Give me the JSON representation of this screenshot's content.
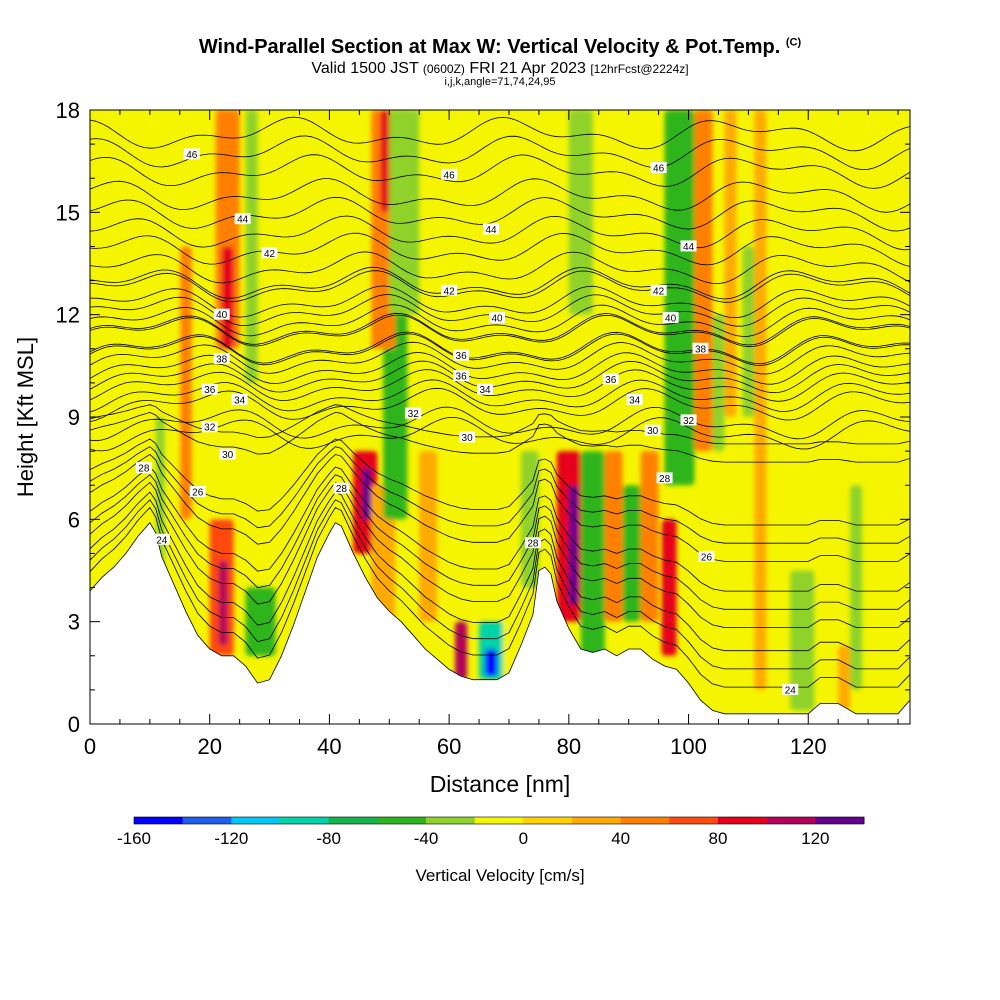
{
  "header": {
    "title": "Wind-Parallel Section at Max W: Vertical Velocity & Pot.Temp.",
    "copyright": "(C)",
    "valid_a": "Valid 1500 JST",
    "valid_utc": "(0600Z)",
    "valid_b": "FRI 21 Apr 2023",
    "fcst": "[12hrFcst@2224z]",
    "indices": "i,j,k,angle=71,74,24,95"
  },
  "chart_data": {
    "type": "heatmap",
    "xlabel": "Distance [nm]",
    "ylabel": "Height [Kft MSL]",
    "xlim": [
      0,
      137
    ],
    "ylim": [
      0,
      18
    ],
    "x_ticks": [
      "0",
      "20",
      "40",
      "60",
      "80",
      "100",
      "120"
    ],
    "y_ticks": [
      "0",
      "3",
      "6",
      "9",
      "12",
      "15",
      "18"
    ],
    "colorbar": {
      "label": "Vertical Velocity [cm/s]",
      "min": -160,
      "max": 140,
      "step": 20,
      "tick_labels": [
        "-160",
        "-120",
        "-80",
        "-40",
        "0",
        "40",
        "80",
        "120"
      ],
      "colors": [
        "#0000ff",
        "#1f5ff0",
        "#00c8f5",
        "#00d2aa",
        "#15b44a",
        "#2db51e",
        "#8fd22a",
        "#f5f500",
        "#ffd200",
        "#ffaa00",
        "#ff8000",
        "#ff4a10",
        "#e6001c",
        "#b4005a",
        "#640090"
      ]
    },
    "terrain_kft": [
      [
        0,
        3.9
      ],
      [
        2,
        4.3
      ],
      [
        4,
        4.6
      ],
      [
        6,
        5.0
      ],
      [
        8,
        5.5
      ],
      [
        10,
        5.9
      ],
      [
        11,
        5.6
      ],
      [
        12,
        4.9
      ],
      [
        14,
        4.1
      ],
      [
        16,
        3.3
      ],
      [
        18,
        2.6
      ],
      [
        20,
        2.2
      ],
      [
        22,
        2.0
      ],
      [
        24,
        2.0
      ],
      [
        26,
        1.7
      ],
      [
        28,
        1.2
      ],
      [
        30,
        1.3
      ],
      [
        32,
        2.0
      ],
      [
        34,
        2.9
      ],
      [
        36,
        3.9
      ],
      [
        38,
        4.9
      ],
      [
        40,
        5.6
      ],
      [
        41,
        5.9
      ],
      [
        42,
        5.8
      ],
      [
        44,
        5.0
      ],
      [
        46,
        4.3
      ],
      [
        48,
        3.7
      ],
      [
        50,
        3.3
      ],
      [
        52,
        3.0
      ],
      [
        54,
        2.6
      ],
      [
        56,
        2.2
      ],
      [
        58,
        1.9
      ],
      [
        60,
        1.6
      ],
      [
        62,
        1.4
      ],
      [
        64,
        1.3
      ],
      [
        66,
        1.3
      ],
      [
        68,
        1.3
      ],
      [
        70,
        1.5
      ],
      [
        72,
        2.3
      ],
      [
        74,
        3.2
      ],
      [
        75,
        4.5
      ],
      [
        76,
        4.6
      ],
      [
        77,
        4.4
      ],
      [
        78,
        3.6
      ],
      [
        80,
        2.8
      ],
      [
        82,
        2.2
      ],
      [
        84,
        2.1
      ],
      [
        86,
        2.2
      ],
      [
        88,
        2.0
      ],
      [
        90,
        2.2
      ],
      [
        92,
        2.2
      ],
      [
        94,
        1.9
      ],
      [
        96,
        1.7
      ],
      [
        98,
        1.6
      ],
      [
        100,
        1.2
      ],
      [
        102,
        0.7
      ],
      [
        104,
        0.4
      ],
      [
        106,
        0.3
      ],
      [
        110,
        0.3
      ],
      [
        118,
        0.3
      ],
      [
        120,
        0.3
      ],
      [
        122,
        0.6
      ],
      [
        125,
        0.6
      ],
      [
        128,
        0.3
      ],
      [
        132,
        0.3
      ],
      [
        135,
        0.3
      ],
      [
        137,
        0.7
      ]
    ],
    "theta_labels": [
      {
        "value": "46",
        "x": 17,
        "y": 16.7
      },
      {
        "value": "46",
        "x": 60,
        "y": 16.1
      },
      {
        "value": "46",
        "x": 95,
        "y": 16.3
      },
      {
        "value": "44",
        "x": 25.5,
        "y": 14.8
      },
      {
        "value": "44",
        "x": 67,
        "y": 14.5
      },
      {
        "value": "44",
        "x": 100,
        "y": 14.0
      },
      {
        "value": "42",
        "x": 30,
        "y": 13.8
      },
      {
        "value": "42",
        "x": 60,
        "y": 12.7
      },
      {
        "value": "42",
        "x": 95,
        "y": 12.7
      },
      {
        "value": "40",
        "x": 22,
        "y": 12.0
      },
      {
        "value": "40",
        "x": 68,
        "y": 11.9
      },
      {
        "value": "40",
        "x": 97,
        "y": 11.9
      },
      {
        "value": "38",
        "x": 22,
        "y": 10.7
      },
      {
        "value": "38",
        "x": 102,
        "y": 11.0
      },
      {
        "value": "36",
        "x": 20,
        "y": 9.8
      },
      {
        "value": "36",
        "x": 62,
        "y": 10.8
      },
      {
        "value": "36",
        "x": 87,
        "y": 10.1
      },
      {
        "value": "36",
        "x": 62,
        "y": 10.2
      },
      {
        "value": "34",
        "x": 25,
        "y": 9.5
      },
      {
        "value": "34",
        "x": 66,
        "y": 9.8
      },
      {
        "value": "34",
        "x": 91,
        "y": 9.5
      },
      {
        "value": "32",
        "x": 20,
        "y": 8.7
      },
      {
        "value": "32",
        "x": 54,
        "y": 9.1
      },
      {
        "value": "32",
        "x": 100,
        "y": 8.9
      },
      {
        "value": "30",
        "x": 23,
        "y": 7.9
      },
      {
        "value": "30",
        "x": 63,
        "y": 8.4
      },
      {
        "value": "30",
        "x": 94,
        "y": 8.6
      },
      {
        "value": "28",
        "x": 9,
        "y": 7.5
      },
      {
        "value": "28",
        "x": 42,
        "y": 6.9
      },
      {
        "value": "28",
        "x": 74,
        "y": 5.3
      },
      {
        "value": "28",
        "x": 96,
        "y": 7.2
      },
      {
        "value": "26",
        "x": 18,
        "y": 6.8
      },
      {
        "value": "26",
        "x": 103,
        "y": 4.9
      },
      {
        "value": "24",
        "x": 12,
        "y": 5.4
      },
      {
        "value": "24",
        "x": 117,
        "y": 1.0
      }
    ],
    "w_cells": [
      {
        "x0": 13,
        "x1": 15,
        "y0": 0,
        "y1": 18,
        "w": -20
      },
      {
        "x0": 11,
        "x1": 12.5,
        "y0": 4,
        "y1": 9,
        "w": -40
      },
      {
        "x0": 15,
        "x1": 17,
        "y0": 6,
        "y1": 14,
        "w": 40
      },
      {
        "x0": 20,
        "x1": 24,
        "y0": 2,
        "y1": 6,
        "w": 60
      },
      {
        "x0": 21.5,
        "x1": 23,
        "y0": 2.3,
        "y1": 4.8,
        "w": 100
      },
      {
        "x0": 21,
        "x1": 25,
        "y0": 11,
        "y1": 18,
        "w": 40
      },
      {
        "x0": 22,
        "x1": 24,
        "y0": 11,
        "y1": 14,
        "w": 80
      },
      {
        "x0": 26,
        "x1": 28,
        "y0": 10,
        "y1": 18,
        "w": -30
      },
      {
        "x0": 26,
        "x1": 31,
        "y0": 2,
        "y1": 4,
        "w": -60
      },
      {
        "x0": 34,
        "x1": 36,
        "y0": 9,
        "y1": 18,
        "w": -20
      },
      {
        "x0": 44,
        "x1": 48,
        "y0": 5,
        "y1": 8,
        "w": 80
      },
      {
        "x0": 45.5,
        "x1": 47,
        "y0": 6,
        "y1": 7.5,
        "w": 140
      },
      {
        "x0": 47,
        "x1": 51,
        "y0": 3,
        "y1": 7,
        "w": 20
      },
      {
        "x0": 49,
        "x1": 53,
        "y0": 6,
        "y1": 12,
        "w": -60
      },
      {
        "x0": 47,
        "x1": 51,
        "y0": 11,
        "y1": 18,
        "w": 40
      },
      {
        "x0": 48.5,
        "x1": 50,
        "y0": 15,
        "y1": 18,
        "w": 80
      },
      {
        "x0": 50,
        "x1": 55,
        "y0": 12,
        "y1": 18,
        "w": -30
      },
      {
        "x0": 55,
        "x1": 58,
        "y0": 3,
        "y1": 8,
        "w": 30
      },
      {
        "x0": 61,
        "x1": 63,
        "y0": 1.3,
        "y1": 3,
        "w": 100
      },
      {
        "x0": 65,
        "x1": 70,
        "y0": 1.3,
        "y1": 3,
        "w": -100
      },
      {
        "x0": 66,
        "x1": 68,
        "y0": 1.4,
        "y1": 2.2,
        "w": -160
      },
      {
        "x0": 69,
        "x1": 72,
        "y0": 1.3,
        "y1": 5,
        "w": -20
      },
      {
        "x0": 72,
        "x1": 75,
        "y0": 4,
        "y1": 8,
        "w": -30
      },
      {
        "x0": 78,
        "x1": 82,
        "y0": 3,
        "y1": 8,
        "w": 80
      },
      {
        "x0": 80,
        "x1": 81.5,
        "y0": 3.5,
        "y1": 7,
        "w": 120
      },
      {
        "x0": 82,
        "x1": 86,
        "y0": 2,
        "y1": 8,
        "w": -60
      },
      {
        "x0": 80,
        "x1": 84,
        "y0": 12,
        "y1": 18,
        "w": -40
      },
      {
        "x0": 86,
        "x1": 89,
        "y0": 3,
        "y1": 8,
        "w": 40
      },
      {
        "x0": 89,
        "x1": 92,
        "y0": 3,
        "y1": 7,
        "w": -50
      },
      {
        "x0": 92,
        "x1": 95,
        "y0": 3,
        "y1": 8,
        "w": 40
      },
      {
        "x0": 95.5,
        "x1": 98,
        "y0": 2,
        "y1": 6,
        "w": 80
      },
      {
        "x0": 96,
        "x1": 101,
        "y0": 7,
        "y1": 18,
        "w": -60
      },
      {
        "x0": 101,
        "x1": 104,
        "y0": 8,
        "y1": 18,
        "w": 40
      },
      {
        "x0": 104,
        "x1": 106,
        "y0": 8,
        "y1": 12,
        "w": -30
      },
      {
        "x0": 106,
        "x1": 108,
        "y0": 9,
        "y1": 18,
        "w": 30
      },
      {
        "x0": 109,
        "x1": 111,
        "y0": 9,
        "y1": 14,
        "w": -40
      },
      {
        "x0": 111,
        "x1": 113,
        "y0": 1,
        "y1": 18,
        "w": 20
      },
      {
        "x0": 117,
        "x1": 121,
        "y0": 0.4,
        "y1": 4.5,
        "w": -30
      },
      {
        "x0": 125,
        "x1": 127,
        "y0": 0.4,
        "y1": 2.3,
        "w": 20
      },
      {
        "x0": 127,
        "x1": 129,
        "y0": 1,
        "y1": 7,
        "w": -30
      }
    ]
  }
}
